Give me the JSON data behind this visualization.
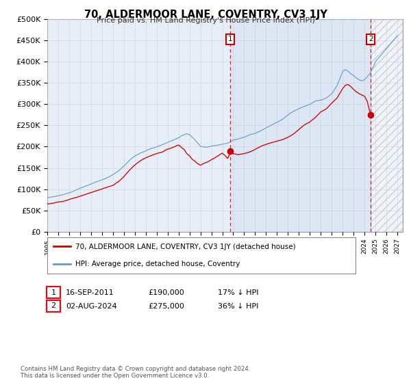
{
  "title": "70, ALDERMOOR LANE, COVENTRY, CV3 1JY",
  "subtitle": "Price paid vs. HM Land Registry's House Price Index (HPI)",
  "red_label": "70, ALDERMOOR LANE, COVENTRY, CV3 1JY (detached house)",
  "blue_label": "HPI: Average price, detached house, Coventry",
  "annotation1_date": "16-SEP-2011",
  "annotation1_price": "£190,000",
  "annotation1_hpi": "17% ↓ HPI",
  "annotation2_date": "02-AUG-2024",
  "annotation2_price": "£275,000",
  "annotation2_hpi": "36% ↓ HPI",
  "footnote": "Contains HM Land Registry data © Crown copyright and database right 2024.\nThis data is licensed under the Open Government Licence v3.0.",
  "ylim": [
    0,
    500000
  ],
  "yticks": [
    0,
    50000,
    100000,
    150000,
    200000,
    250000,
    300000,
    350000,
    400000,
    450000,
    500000
  ],
  "bg_color": "#e8eef8",
  "grid_color": "#cccccc",
  "red_color": "#cc0000",
  "blue_color": "#6699cc",
  "shade_color": "#dce6f5",
  "sale1_year": 2011.71,
  "sale1_price": 190000,
  "sale2_year": 2024.58,
  "sale2_price": 275000,
  "hpi_x": [
    1995,
    1995.5,
    1996,
    1996.5,
    1997,
    1997.5,
    1998,
    1998.5,
    1999,
    1999.5,
    2000,
    2000.5,
    2001,
    2001.5,
    2002,
    2002.5,
    2003,
    2003.5,
    2004,
    2004.5,
    2005,
    2005.5,
    2006,
    2006.5,
    2007,
    2007.25,
    2007.5,
    2007.75,
    2008,
    2008.25,
    2008.5,
    2008.75,
    2009,
    2009.5,
    2010,
    2010.5,
    2011,
    2011.5,
    2012,
    2012.5,
    2013,
    2013.5,
    2014,
    2014.5,
    2015,
    2015.5,
    2016,
    2016.5,
    2017,
    2017.5,
    2018,
    2018.5,
    2019,
    2019.5,
    2020,
    2020.5,
    2021,
    2021.5,
    2022,
    2022.25,
    2022.5,
    2022.75,
    2023,
    2023.25,
    2023.5,
    2023.75,
    2024,
    2024.25,
    2024.5,
    2024.75,
    2025,
    2025.5,
    2026,
    2026.5,
    2027
  ],
  "hpi_y": [
    80000,
    82000,
    85000,
    88000,
    92000,
    97000,
    103000,
    108000,
    113000,
    118000,
    123000,
    128000,
    135000,
    143000,
    155000,
    168000,
    178000,
    185000,
    190000,
    196000,
    200000,
    205000,
    210000,
    215000,
    220000,
    225000,
    228000,
    230000,
    228000,
    222000,
    215000,
    208000,
    200000,
    198000,
    200000,
    202000,
    205000,
    208000,
    215000,
    218000,
    222000,
    228000,
    232000,
    238000,
    245000,
    252000,
    258000,
    265000,
    275000,
    283000,
    290000,
    295000,
    300000,
    308000,
    310000,
    315000,
    325000,
    345000,
    378000,
    382000,
    378000,
    372000,
    368000,
    362000,
    358000,
    355000,
    358000,
    365000,
    372000,
    385000,
    400000,
    415000,
    430000,
    445000,
    460000
  ],
  "red_x": [
    1995,
    1995.5,
    1996,
    1996.5,
    1997,
    1997.5,
    1998,
    1998.5,
    1999,
    1999.5,
    2000,
    2000.5,
    2001,
    2001.5,
    2002,
    2002.5,
    2003,
    2003.5,
    2004,
    2004.5,
    2005,
    2005.5,
    2006,
    2006.5,
    2007,
    2007.25,
    2007.5,
    2007.75,
    2008,
    2008.25,
    2008.5,
    2008.75,
    2009,
    2009.25,
    2009.5,
    2009.75,
    2010,
    2010.5,
    2011,
    2011.25,
    2011.5,
    2011.71,
    2012,
    2012.5,
    2013,
    2013.5,
    2014,
    2014.5,
    2015,
    2015.5,
    2016,
    2016.5,
    2017,
    2017.5,
    2018,
    2018.5,
    2019,
    2019.5,
    2020,
    2020.5,
    2021,
    2021.5,
    2022,
    2022.25,
    2022.5,
    2022.75,
    2023,
    2023.25,
    2023.5,
    2023.75,
    2024,
    2024.25,
    2024.58
  ],
  "red_y": [
    65000,
    67000,
    70000,
    72000,
    76000,
    80000,
    84000,
    88000,
    92000,
    96000,
    100000,
    105000,
    110000,
    118000,
    130000,
    145000,
    158000,
    168000,
    175000,
    180000,
    185000,
    188000,
    195000,
    200000,
    205000,
    200000,
    195000,
    185000,
    180000,
    172000,
    168000,
    162000,
    158000,
    162000,
    165000,
    168000,
    172000,
    180000,
    188000,
    182000,
    175000,
    190000,
    188000,
    185000,
    188000,
    192000,
    198000,
    205000,
    210000,
    215000,
    218000,
    222000,
    228000,
    235000,
    245000,
    255000,
    262000,
    272000,
    285000,
    292000,
    305000,
    318000,
    340000,
    348000,
    350000,
    345000,
    338000,
    332000,
    328000,
    325000,
    322000,
    310000,
    275000
  ]
}
